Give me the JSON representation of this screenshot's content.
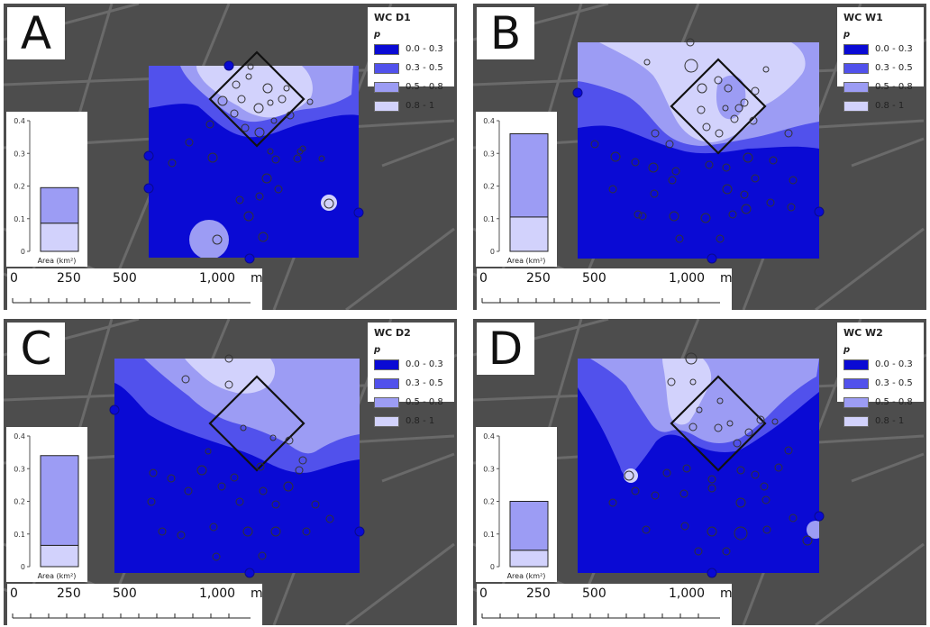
{
  "figure": {
    "panels": [
      {
        "letter": "A",
        "legend_title": "WC D1",
        "inset_values": [
          0.086,
          0.195
        ],
        "hotspot": "A"
      },
      {
        "letter": "B",
        "legend_title": "WC W1",
        "inset_values": [
          0.105,
          0.36
        ],
        "hotspot": "B"
      },
      {
        "letter": "C",
        "legend_title": "WC D2",
        "inset_values": [
          0.065,
          0.34
        ],
        "hotspot": "C"
      },
      {
        "letter": "D",
        "legend_title": "WC W2",
        "inset_values": [
          0.05,
          0.2
        ],
        "hotspot": "D"
      }
    ],
    "legend": {
      "variable": "p",
      "classes": [
        {
          "label": "0.0 - 0.3",
          "color": "#0a0ad4"
        },
        {
          "label": "0.3 - 0.5",
          "color": "#5151ec"
        },
        {
          "label": "0.5 - 0.8",
          "color": "#9c9cf4"
        },
        {
          "label": "0.8 - 1",
          "color": "#d2d2fc"
        }
      ]
    },
    "inset": {
      "xlabel": "Area (km²)",
      "ytick_labels": [
        "0",
        "0.1",
        "0.2",
        "0.3",
        "0.4"
      ],
      "ylim": [
        0,
        0.4
      ]
    },
    "scale_bar": {
      "labels": [
        "0",
        "250",
        "500",
        "1,000",
        "m"
      ]
    },
    "colors": {
      "background": "#4d4d4d",
      "streets": "#6a6a6a",
      "marker_stroke": "#333333"
    }
  },
  "chart_data": [
    {
      "type": "bar",
      "title": "",
      "xlabel": "Area (km²)",
      "ylabel": "",
      "ylim": [
        0,
        0.4
      ],
      "categories": [
        ""
      ],
      "series": [
        {
          "name": "0.8 - 1",
          "values": [
            0.086
          ]
        },
        {
          "name": "0.5 - 0.8",
          "values": [
            0.109
          ]
        }
      ]
    },
    {
      "type": "bar",
      "title": "",
      "xlabel": "Area (km²)",
      "ylabel": "",
      "ylim": [
        0,
        0.4
      ],
      "categories": [
        ""
      ],
      "series": [
        {
          "name": "0.8 - 1",
          "values": [
            0.105
          ]
        },
        {
          "name": "0.5 - 0.8",
          "values": [
            0.255
          ]
        }
      ]
    },
    {
      "type": "bar",
      "title": "",
      "xlabel": "Area (km²)",
      "ylabel": "",
      "ylim": [
        0,
        0.4
      ],
      "categories": [
        ""
      ],
      "series": [
        {
          "name": "0.8 - 1",
          "values": [
            0.065
          ]
        },
        {
          "name": "0.5 - 0.8",
          "values": [
            0.275
          ]
        }
      ]
    },
    {
      "type": "bar",
      "title": "",
      "xlabel": "Area (km²)",
      "ylabel": "",
      "ylim": [
        0,
        0.4
      ],
      "categories": [
        ""
      ],
      "series": [
        {
          "name": "0.8 - 1",
          "values": [
            0.05
          ]
        },
        {
          "name": "0.5 - 0.8",
          "values": [
            0.15
          ]
        }
      ]
    }
  ]
}
